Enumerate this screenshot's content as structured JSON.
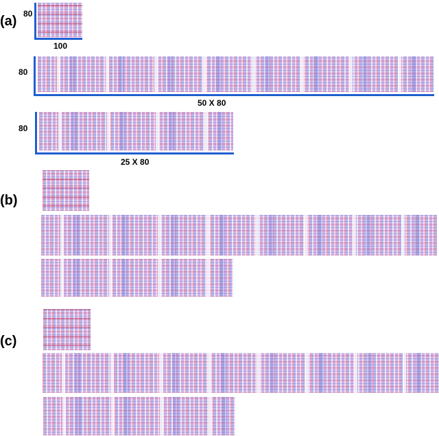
{
  "panel_a": {
    "label": "(a)",
    "small": {
      "height_label": "80",
      "width_label": "100"
    },
    "wide": {
      "height_label": "80",
      "width_label": "50 X 80"
    },
    "medium": {
      "height_label": "80",
      "width_label": "25 X 80"
    }
  },
  "panel_b": {
    "label": "(b)"
  },
  "panel_c": {
    "label": "(c)"
  }
}
